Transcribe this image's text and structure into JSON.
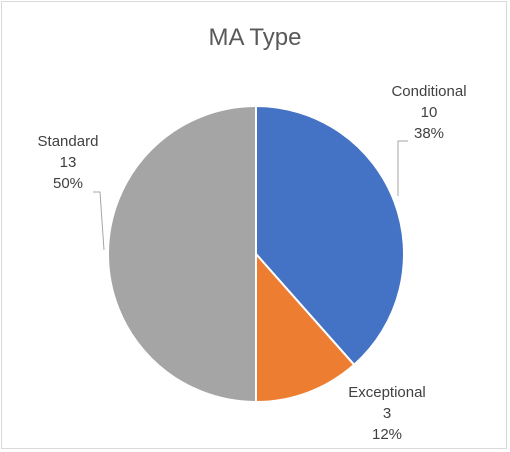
{
  "chart_data": {
    "type": "pie",
    "title": "MA Type",
    "categories": [
      "Conditional",
      "Exceptional",
      "Standard"
    ],
    "values": [
      10,
      3,
      13
    ],
    "percent_labels": [
      "38%",
      "12%",
      "50%"
    ],
    "colors": [
      "#4472c4",
      "#ed7d31",
      "#a5a5a5"
    ],
    "start_angle_deg": 0,
    "direction": "clockwise",
    "legend": "none",
    "data_labels": "category, value, percentage"
  }
}
